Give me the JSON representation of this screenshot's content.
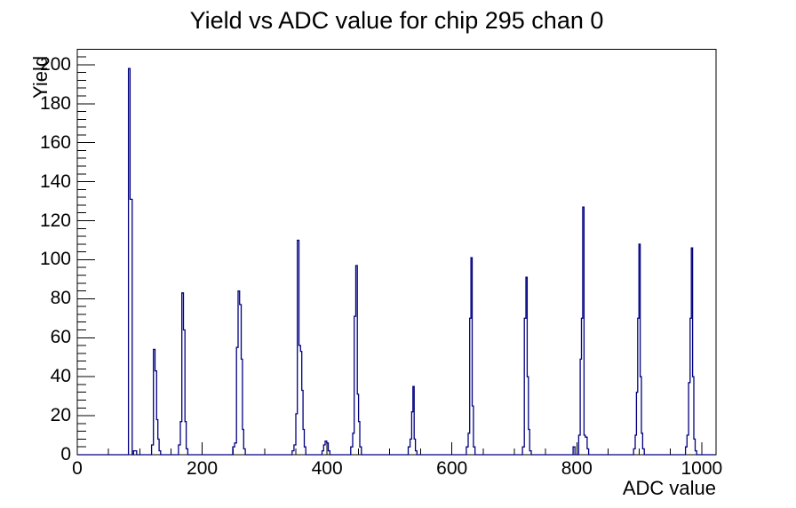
{
  "colors": {
    "histogram_line": "#000080",
    "axis": "#000000",
    "background": "#ffffff"
  },
  "chart_data": {
    "type": "histogram",
    "title": "Yield vs ADC value for chip 295 chan 0",
    "xlabel": "ADC value",
    "ylabel": "Yield",
    "xlim": [
      0,
      1023
    ],
    "ylim": [
      0,
      207.9
    ],
    "grid": false,
    "legend": false,
    "x_major_ticks": [
      0,
      200,
      400,
      600,
      800,
      1000
    ],
    "x_minor_step": 50,
    "y_major_ticks": [
      0,
      20,
      40,
      60,
      80,
      100,
      120,
      140,
      160,
      180,
      200
    ],
    "y_minor_step": 4,
    "peaks": [
      {
        "adc": 84,
        "yield": 198
      },
      {
        "adc": 123,
        "yield": 54
      },
      {
        "adc": 169,
        "yield": 83
      },
      {
        "adc": 259,
        "yield": 84
      },
      {
        "adc": 354,
        "yield": 110
      },
      {
        "adc": 400,
        "yield": 7
      },
      {
        "adc": 447,
        "yield": 97
      },
      {
        "adc": 538,
        "yield": 35
      },
      {
        "adc": 631,
        "yield": 101
      },
      {
        "adc": 720,
        "yield": 91
      },
      {
        "adc": 810,
        "yield": 127
      },
      {
        "adc": 900,
        "yield": 108
      },
      {
        "adc": 985,
        "yield": 106
      }
    ],
    "bars": [
      [
        82,
        84.5,
        198
      ],
      [
        84.5,
        88,
        131
      ],
      [
        90,
        95,
        2
      ],
      [
        119,
        122,
        5
      ],
      [
        122,
        124.5,
        54
      ],
      [
        124.5,
        127,
        43
      ],
      [
        127,
        129,
        18
      ],
      [
        129,
        131,
        8
      ],
      [
        131,
        133.5,
        2
      ],
      [
        162,
        165,
        5
      ],
      [
        165,
        167.5,
        17
      ],
      [
        167.5,
        170,
        83
      ],
      [
        170,
        172.5,
        64
      ],
      [
        172.5,
        174.5,
        17
      ],
      [
        174.5,
        177,
        3
      ],
      [
        249,
        252,
        4
      ],
      [
        252,
        255,
        6
      ],
      [
        255,
        257.5,
        55
      ],
      [
        257.5,
        260,
        84
      ],
      [
        260,
        262.5,
        77
      ],
      [
        262.5,
        264.5,
        49
      ],
      [
        264.5,
        266.5,
        13
      ],
      [
        266.5,
        269,
        3
      ],
      [
        344,
        347,
        2
      ],
      [
        347,
        350,
        5
      ],
      [
        350,
        352.5,
        21
      ],
      [
        352.5,
        355,
        110
      ],
      [
        355,
        357.5,
        56
      ],
      [
        357.5,
        359.5,
        53
      ],
      [
        359.5,
        361.5,
        33
      ],
      [
        361.5,
        363.5,
        13
      ],
      [
        363.5,
        366,
        4
      ],
      [
        392,
        394.5,
        2
      ],
      [
        394.5,
        397,
        5
      ],
      [
        397,
        399.5,
        7
      ],
      [
        399.5,
        402,
        6
      ],
      [
        402,
        404.5,
        2
      ],
      [
        438,
        441,
        4
      ],
      [
        441,
        443.5,
        11
      ],
      [
        443.5,
        446,
        71
      ],
      [
        446,
        448.5,
        97
      ],
      [
        448.5,
        450.5,
        31
      ],
      [
        450.5,
        452.5,
        17
      ],
      [
        452.5,
        455,
        4
      ],
      [
        530,
        533,
        4
      ],
      [
        533,
        535.5,
        8
      ],
      [
        535.5,
        537.5,
        22
      ],
      [
        537.5,
        539.5,
        35
      ],
      [
        539.5,
        541.5,
        8
      ],
      [
        541.5,
        544,
        2
      ],
      [
        623,
        626,
        4
      ],
      [
        626,
        628.5,
        11
      ],
      [
        628.5,
        630.5,
        70
      ],
      [
        630.5,
        632.5,
        101
      ],
      [
        632.5,
        634.5,
        25
      ],
      [
        634.5,
        637,
        4
      ],
      [
        713,
        716,
        4
      ],
      [
        716,
        718.5,
        70
      ],
      [
        718.5,
        720.5,
        91
      ],
      [
        720.5,
        722.5,
        40
      ],
      [
        722.5,
        724.5,
        13
      ],
      [
        724.5,
        727,
        2
      ],
      [
        794,
        797,
        4
      ],
      [
        803,
        805.5,
        10
      ],
      [
        805.5,
        807.5,
        49
      ],
      [
        807.5,
        809.5,
        70
      ],
      [
        809.5,
        811.5,
        127
      ],
      [
        811.5,
        813.5,
        10
      ],
      [
        813.5,
        816.5,
        9
      ],
      [
        816.5,
        819,
        3
      ],
      [
        891,
        893.5,
        3
      ],
      [
        893.5,
        895.5,
        10
      ],
      [
        895.5,
        897.5,
        32
      ],
      [
        897.5,
        899.5,
        70
      ],
      [
        899.5,
        901.5,
        108
      ],
      [
        901.5,
        903.5,
        40
      ],
      [
        903.5,
        905.5,
        11
      ],
      [
        905.5,
        908,
        3
      ],
      [
        974,
        976.5,
        4
      ],
      [
        976.5,
        979,
        10
      ],
      [
        979,
        981.5,
        37
      ],
      [
        981.5,
        983.5,
        70
      ],
      [
        983.5,
        985.5,
        106
      ],
      [
        985.5,
        987.5,
        40
      ],
      [
        987.5,
        989.5,
        8
      ],
      [
        989.5,
        992,
        2
      ]
    ]
  }
}
